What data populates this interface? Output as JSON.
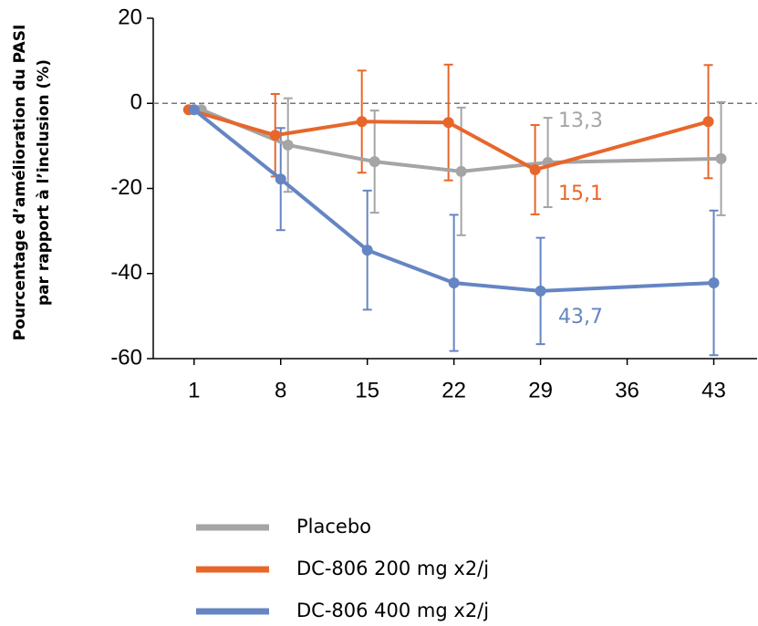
{
  "chart_data": {
    "type": "line",
    "ylabel": [
      "Pourcentage d’amélioration du PASI",
      "par rapport à l’inclusion (%)"
    ],
    "x": [
      1,
      8,
      15,
      22,
      29,
      43
    ],
    "xlim": [
      -2.3,
      46.5
    ],
    "xticks": [
      1,
      8,
      15,
      22,
      29,
      36,
      43
    ],
    "ylim": [
      -60,
      20
    ],
    "yticks": [
      -60,
      -40,
      -20,
      0,
      20
    ],
    "series": [
      {
        "name": "Placebo",
        "color": "#a5a5a5",
        "values": [
          -1.5,
          -9.8,
          -13.7,
          -16,
          -13.9,
          -13
        ],
        "errors": [
          0,
          11,
          12,
          15,
          10.5,
          13.3
        ]
      },
      {
        "name": "DC-806 200 mg x2/j",
        "color": "#e8662a",
        "values": [
          -1.5,
          -7.5,
          -4.3,
          -4.5,
          -15.6,
          -4.3
        ],
        "errors": [
          0,
          9.7,
          12,
          13.6,
          10.5,
          13.3
        ]
      },
      {
        "name": "DC-806 400 mg x2/j",
        "color": "#6585c3",
        "values": [
          -1.5,
          -17.8,
          -34.5,
          -42.2,
          -44.1,
          -42.2
        ],
        "errors": [
          0,
          12,
          14,
          16,
          12.5,
          17
        ]
      }
    ],
    "annotations": [
      {
        "text": "13,3",
        "color": "#a5a5a5"
      },
      {
        "text": "15,1",
        "color": "#e8662a"
      },
      {
        "text": "43,7",
        "color": "#6585c3"
      }
    ]
  }
}
